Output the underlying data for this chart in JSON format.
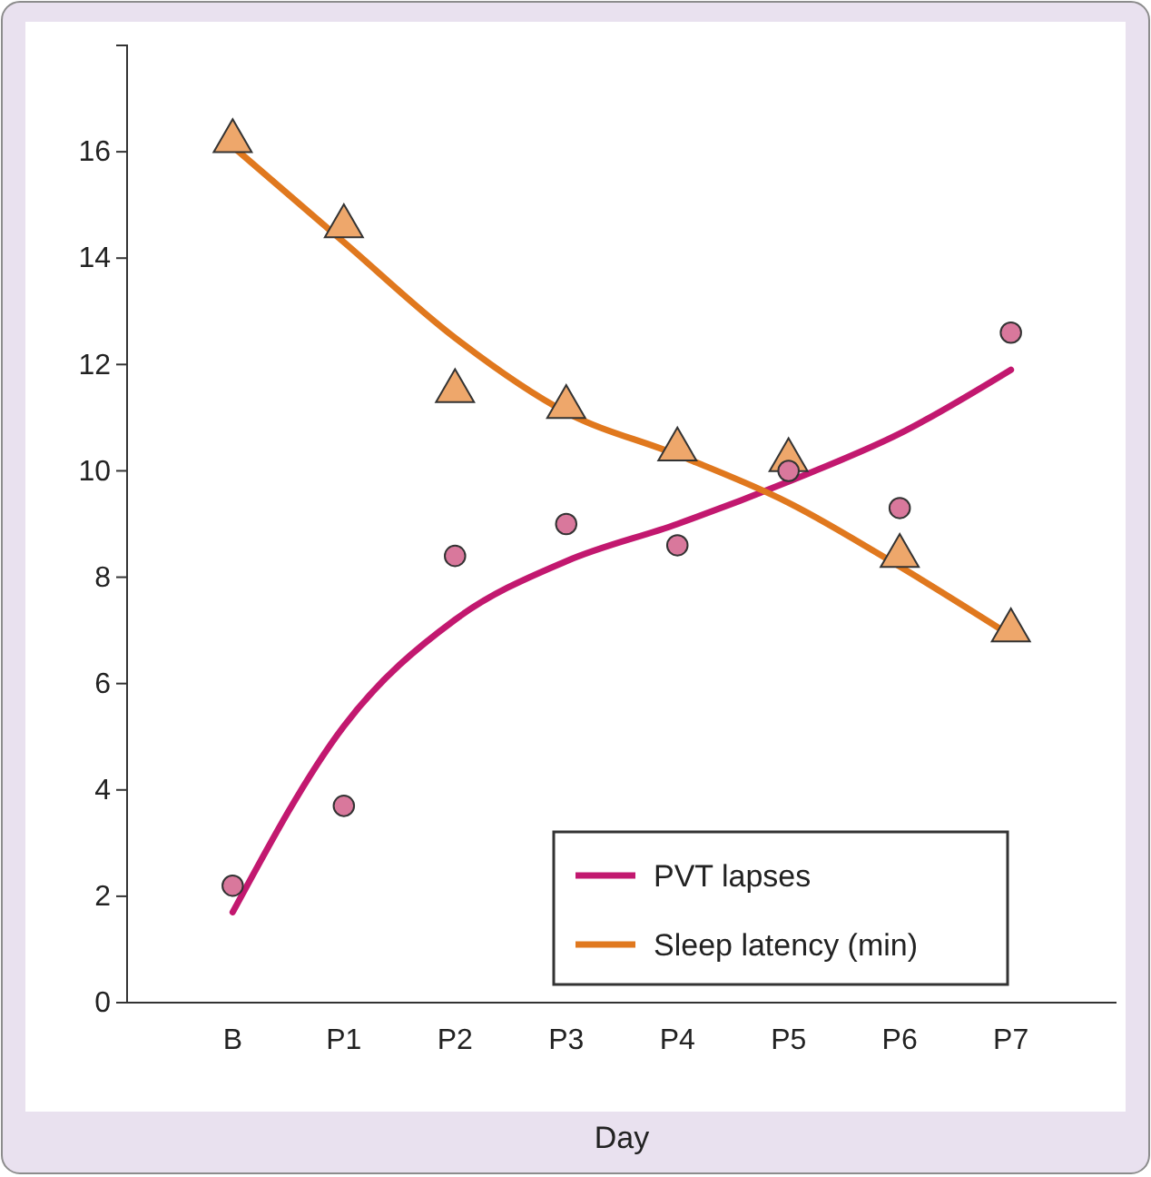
{
  "chart_data": {
    "type": "line",
    "xlabel": "Day",
    "categories": [
      "B",
      "P1",
      "P2",
      "P3",
      "P4",
      "P5",
      "P6",
      "P7"
    ],
    "ylim": [
      0,
      18
    ],
    "yticks": [
      0,
      2,
      4,
      6,
      8,
      10,
      12,
      14,
      16
    ],
    "grid": false,
    "legend": "bottom right",
    "series": [
      {
        "name": "PVT lapses",
        "color": "#c2186f",
        "marker": "none",
        "values": [
          1.7,
          5.2,
          7.2,
          8.3,
          9.0,
          9.8,
          10.7,
          11.9
        ]
      },
      {
        "name": "Sleep latency (min)",
        "color": "#e0781e",
        "marker": "none",
        "values": [
          16.1,
          14.3,
          12.5,
          11.1,
          10.3,
          9.4,
          8.2,
          6.9
        ]
      },
      {
        "type": "scatter",
        "color": "#d9789c",
        "marker": "circle",
        "values": [
          2.2,
          3.7,
          8.4,
          9.0,
          8.6,
          10.0,
          9.3,
          12.6
        ]
      },
      {
        "type": "scatter",
        "color": "#eea76b",
        "marker": "triangle",
        "values": [
          16.2,
          14.6,
          11.5,
          11.2,
          10.4,
          10.2,
          8.4,
          7.0
        ]
      }
    ]
  }
}
